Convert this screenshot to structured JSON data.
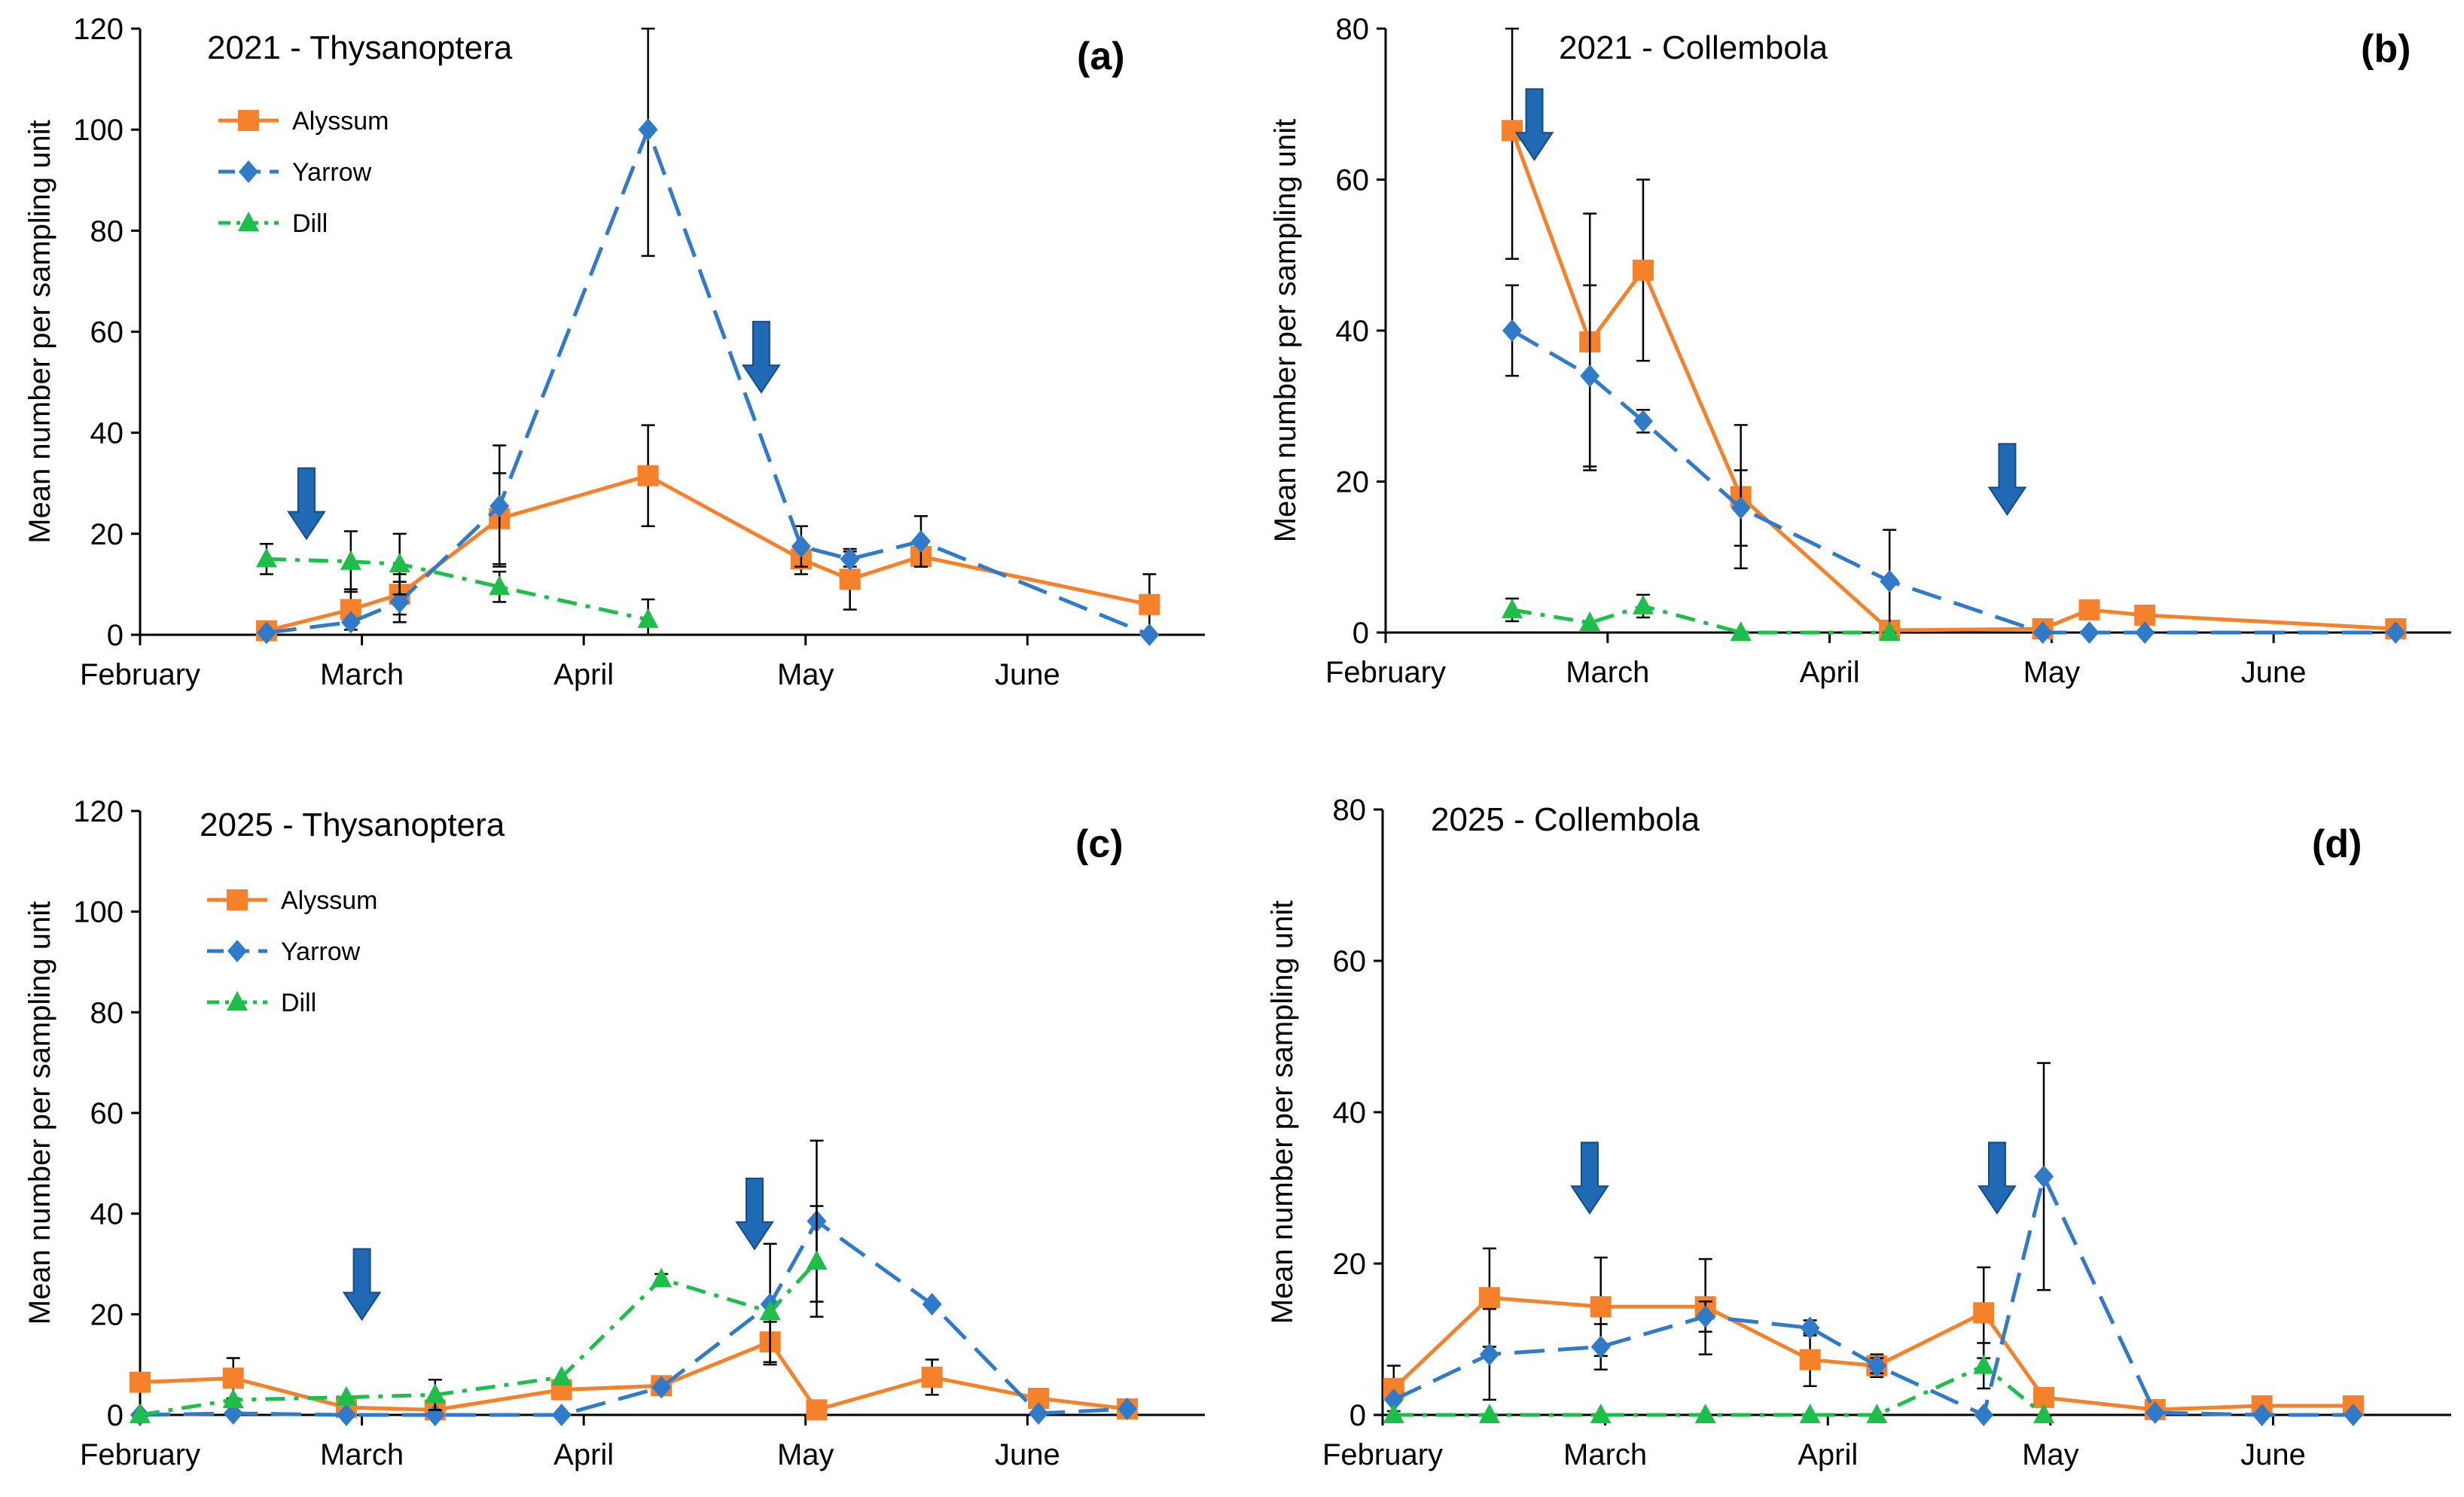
{
  "colors": {
    "alyssum": "#F5812A",
    "yarrow": "#2F7BC9",
    "dill": "#1DBF4A",
    "arrow": "#1F69B5",
    "errorbar": "#000000"
  },
  "chart_data": [
    {
      "id": "a",
      "type": "line",
      "title": "2021 - Thysanoptera",
      "panel_label": "(a)",
      "ylabel": "Mean number per sampling unit",
      "ylim": [
        0,
        120
      ],
      "yticks": [
        0,
        20,
        40,
        60,
        80,
        100,
        120
      ],
      "xlim": [
        0,
        4.8
      ],
      "xticks": [
        {
          "pos": 0,
          "label": "February"
        },
        {
          "pos": 1,
          "label": "March"
        },
        {
          "pos": 2,
          "label": "April"
        },
        {
          "pos": 3,
          "label": "May"
        },
        {
          "pos": 4,
          "label": "June"
        }
      ],
      "show_legend": true,
      "series": [
        {
          "name": "Alyssum",
          "key": "alyssum",
          "style": "solid",
          "marker": "square",
          "points": [
            [
              0.57,
              0.8,
              0
            ],
            [
              0.95,
              5,
              4
            ],
            [
              1.17,
              8,
              4
            ],
            [
              1.62,
              23,
              9
            ],
            [
              2.29,
              31.5,
              10
            ],
            [
              2.98,
              15,
              3
            ],
            [
              3.2,
              11,
              6
            ],
            [
              3.52,
              15.5,
              2
            ],
            [
              4.55,
              6,
              6
            ]
          ]
        },
        {
          "name": "Yarrow",
          "key": "yarrow",
          "style": "dash",
          "marker": "diamond",
          "points": [
            [
              0.57,
              0.4,
              0
            ],
            [
              0.95,
              2.5,
              0
            ],
            [
              1.17,
              6.5,
              4
            ],
            [
              1.62,
              25.5,
              12
            ],
            [
              2.29,
              100,
              25
            ],
            [
              2.98,
              17.5,
              4
            ],
            [
              3.2,
              15,
              1.5
            ],
            [
              3.52,
              18.5,
              5
            ],
            [
              4.55,
              0,
              0
            ]
          ]
        },
        {
          "name": "Dill",
          "key": "dill",
          "style": "dashdot",
          "marker": "triangle",
          "points": [
            [
              0.57,
              15,
              3
            ],
            [
              0.95,
              14.5,
              6
            ],
            [
              1.17,
              14,
              6
            ],
            [
              1.62,
              9.5,
              3
            ],
            [
              2.29,
              3,
              4
            ]
          ]
        }
      ],
      "arrows": [
        {
          "x": 0.75,
          "y": 33
        },
        {
          "x": 2.8,
          "y": 62
        }
      ]
    },
    {
      "id": "b",
      "type": "line",
      "title": "2021 - Collembola",
      "panel_label": "(b)",
      "ylabel": "Mean number per sampling unit",
      "ylim": [
        0,
        80
      ],
      "yticks": [
        0,
        20,
        40,
        60,
        80
      ],
      "xlim": [
        0,
        4.8
      ],
      "xticks": [
        {
          "pos": 0,
          "label": "February"
        },
        {
          "pos": 1,
          "label": "March"
        },
        {
          "pos": 2,
          "label": "April"
        },
        {
          "pos": 3,
          "label": "May"
        },
        {
          "pos": 4,
          "label": "June"
        }
      ],
      "show_legend": false,
      "series": [
        {
          "name": "Alyssum",
          "key": "alyssum",
          "style": "solid",
          "marker": "square",
          "points": [
            [
              0.57,
              66.5,
              17
            ],
            [
              0.92,
              38.5,
              17
            ],
            [
              1.16,
              48,
              12
            ],
            [
              1.6,
              18,
              9.5
            ],
            [
              2.27,
              0.3,
              0
            ],
            [
              2.96,
              0.5,
              0
            ],
            [
              3.17,
              3,
              1
            ],
            [
              3.42,
              2.3,
              1
            ],
            [
              4.55,
              0.5,
              0
            ]
          ]
        },
        {
          "name": "Yarrow",
          "key": "yarrow",
          "style": "dash",
          "marker": "diamond",
          "points": [
            [
              0.57,
              40,
              6
            ],
            [
              0.92,
              34,
              12
            ],
            [
              1.16,
              28,
              1.5
            ],
            [
              1.6,
              16.5,
              5
            ],
            [
              2.27,
              6.8,
              6.8
            ],
            [
              2.96,
              0,
              0
            ],
            [
              3.17,
              0,
              0
            ],
            [
              3.42,
              0,
              0
            ],
            [
              4.55,
              0,
              0
            ]
          ]
        },
        {
          "name": "Dill",
          "key": "dill",
          "style": "dashdot",
          "marker": "triangle",
          "points": [
            [
              0.57,
              3,
              1.5
            ],
            [
              0.92,
              1.3,
              0
            ],
            [
              1.16,
              3.5,
              1.5
            ],
            [
              1.6,
              0,
              0
            ],
            [
              2.27,
              0,
              0
            ]
          ]
        }
      ],
      "arrows": [
        {
          "x": 0.67,
          "y": 72
        },
        {
          "x": 2.8,
          "y": 25
        }
      ]
    },
    {
      "id": "c",
      "type": "line",
      "title": "2025 - Thysanoptera",
      "panel_label": "(c)",
      "ylabel": "Mean number per sampling unit",
      "ylim": [
        0,
        120
      ],
      "yticks": [
        0,
        20,
        40,
        60,
        80,
        100,
        120
      ],
      "xlim": [
        0,
        4.8
      ],
      "xticks": [
        {
          "pos": 0,
          "label": "February"
        },
        {
          "pos": 1,
          "label": "March"
        },
        {
          "pos": 2,
          "label": "April"
        },
        {
          "pos": 3,
          "label": "May"
        },
        {
          "pos": 4,
          "label": "June"
        }
      ],
      "show_legend": true,
      "series": [
        {
          "name": "Alyssum",
          "key": "alyssum",
          "style": "solid",
          "marker": "square",
          "points": [
            [
              0,
              6.5,
              0
            ],
            [
              0.42,
              7.3,
              4
            ],
            [
              0.93,
              1.5,
              0
            ],
            [
              1.33,
              1,
              0
            ],
            [
              1.9,
              5,
              0
            ],
            [
              2.35,
              5.8,
              0
            ],
            [
              2.84,
              14.5,
              4
            ],
            [
              3.05,
              1,
              0
            ],
            [
              3.57,
              7.5,
              3.5
            ],
            [
              4.05,
              3.3,
              0
            ],
            [
              4.45,
              1.2,
              0
            ]
          ]
        },
        {
          "name": "Yarrow",
          "key": "yarrow",
          "style": "dash",
          "marker": "diamond",
          "points": [
            [
              0,
              0,
              0
            ],
            [
              0.42,
              0.3,
              0
            ],
            [
              0.93,
              0,
              0
            ],
            [
              1.33,
              0,
              0
            ],
            [
              1.9,
              0,
              0
            ],
            [
              2.35,
              5.5,
              0
            ],
            [
              2.84,
              22,
              12
            ],
            [
              3.05,
              38.5,
              16
            ],
            [
              3.57,
              22,
              0
            ],
            [
              4.05,
              0.3,
              0
            ],
            [
              4.45,
              1.2,
              0
            ]
          ]
        },
        {
          "name": "Dill",
          "key": "dill",
          "style": "dashdot",
          "marker": "triangle",
          "points": [
            [
              0,
              0,
              0
            ],
            [
              0.42,
              3,
              0
            ],
            [
              0.93,
              3.5,
              0
            ],
            [
              1.33,
              4,
              3
            ],
            [
              1.9,
              7.5,
              0
            ],
            [
              2.35,
              27,
              1
            ],
            [
              2.84,
              20.5,
              0
            ],
            [
              3.05,
              30.5,
              11
            ]
          ]
        }
      ],
      "arrows": [
        {
          "x": 1.0,
          "y": 33
        },
        {
          "x": 2.77,
          "y": 47
        }
      ]
    },
    {
      "id": "d",
      "type": "line",
      "title": "2025 - Collembola",
      "panel_label": "(d)",
      "ylabel": "Mean number per sampling unit",
      "ylim": [
        0,
        80
      ],
      "yticks": [
        0,
        20,
        40,
        60,
        80
      ],
      "xlim": [
        0,
        4.8
      ],
      "xticks": [
        {
          "pos": 0,
          "label": "February"
        },
        {
          "pos": 1,
          "label": "March"
        },
        {
          "pos": 2,
          "label": "April"
        },
        {
          "pos": 3,
          "label": "May"
        },
        {
          "pos": 4,
          "label": "June"
        }
      ],
      "show_legend": false,
      "series": [
        {
          "name": "Alyssum",
          "key": "alyssum",
          "style": "solid",
          "marker": "square",
          "points": [
            [
              0.05,
              3.5,
              3
            ],
            [
              0.48,
              15.5,
              6.5
            ],
            [
              0.98,
              14.3,
              6.5
            ],
            [
              1.45,
              14.3,
              6.3
            ],
            [
              1.92,
              7.3,
              3.5
            ],
            [
              2.22,
              6.5,
              1.5
            ],
            [
              2.7,
              13.5,
              6
            ],
            [
              2.97,
              2.3,
              0
            ],
            [
              3.47,
              0.7,
              0
            ],
            [
              3.95,
              1.2,
              0
            ],
            [
              4.36,
              1.2,
              0
            ]
          ]
        },
        {
          "name": "Yarrow",
          "key": "yarrow",
          "style": "dash",
          "marker": "diamond",
          "points": [
            [
              0.05,
              2,
              0
            ],
            [
              0.48,
              8,
              6
            ],
            [
              0.98,
              9,
              3
            ],
            [
              1.45,
              13,
              2
            ],
            [
              1.92,
              11.5,
              1
            ],
            [
              2.22,
              6.5,
              1
            ],
            [
              2.7,
              0,
              0
            ],
            [
              2.97,
              31.5,
              15
            ],
            [
              3.47,
              0.3,
              0
            ],
            [
              3.95,
              0,
              0
            ],
            [
              4.36,
              0,
              0
            ]
          ]
        },
        {
          "name": "Dill",
          "key": "dill",
          "style": "dashdot",
          "marker": "triangle",
          "points": [
            [
              0.05,
              0,
              0
            ],
            [
              0.48,
              0,
              0
            ],
            [
              0.98,
              0,
              0
            ],
            [
              1.45,
              0,
              0
            ],
            [
              1.92,
              0,
              0
            ],
            [
              2.22,
              0,
              0
            ],
            [
              2.7,
              6.5,
              3
            ],
            [
              2.97,
              0,
              0
            ]
          ]
        }
      ],
      "arrows": [
        {
          "x": 0.93,
          "y": 36
        },
        {
          "x": 2.76,
          "y": 36
        }
      ]
    }
  ]
}
